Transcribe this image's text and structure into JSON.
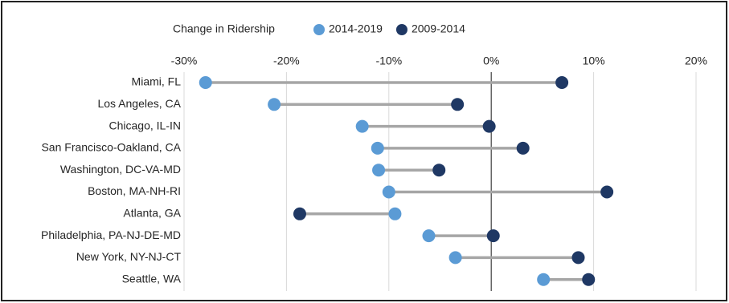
{
  "chart_data": {
    "type": "dumbbell",
    "legend_title": "Change in Ridership",
    "legend_position": "top",
    "categories": [
      "Miami, FL",
      "Los Angeles, CA",
      "Chicago, IL-IN",
      "San Francisco-Oakland, CA",
      "Washington, DC-VA-MD",
      "Boston, MA-NH-RI",
      "Atlanta, GA",
      "Philadelphia, PA-NJ-DE-MD",
      "New York, NY-NJ-CT",
      "Seattle, WA"
    ],
    "series": [
      {
        "name": "2014-2019",
        "color": "#5b9bd5",
        "values": [
          -27.9,
          -21.2,
          -12.6,
          -11.1,
          -11.0,
          -10.0,
          -9.4,
          -6.1,
          -3.5,
          5.1
        ]
      },
      {
        "name": "2009-2014",
        "color": "#1f3864",
        "values": [
          6.9,
          -3.3,
          -0.2,
          3.1,
          -5.1,
          11.3,
          -18.7,
          0.2,
          8.5,
          9.5
        ]
      }
    ],
    "connector_color": "#a6a6a6",
    "xlim": [
      -30,
      20
    ],
    "xticks": [
      {
        "value": -30,
        "label": "-30%"
      },
      {
        "value": -20,
        "label": "-20%"
      },
      {
        "value": -10,
        "label": "-10%"
      },
      {
        "value": 0,
        "label": "0%"
      },
      {
        "value": 10,
        "label": "10%"
      },
      {
        "value": 20,
        "label": "20%"
      }
    ],
    "grid": true
  }
}
